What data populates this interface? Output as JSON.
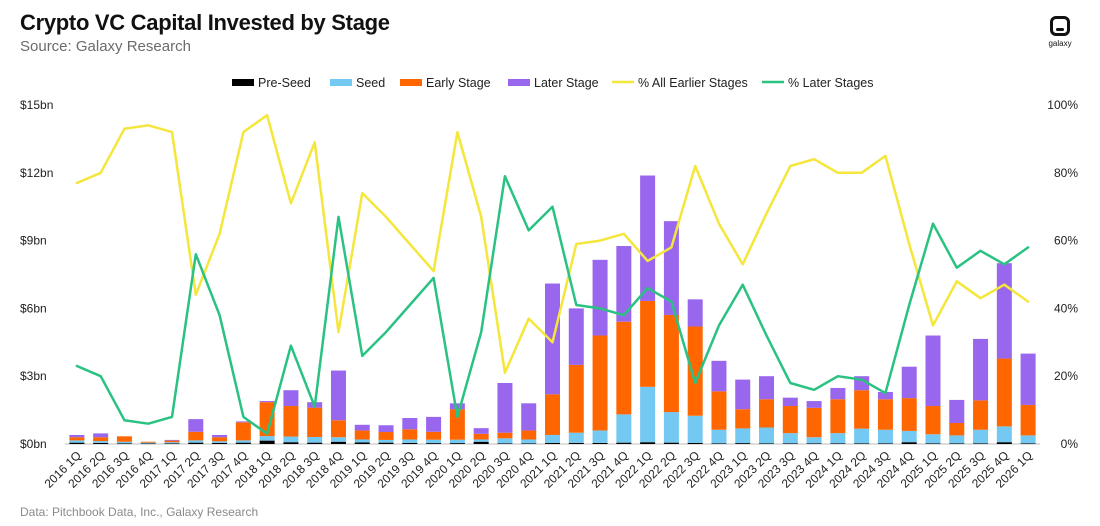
{
  "header": {
    "title": "Crypto VC Capital Invested by Stage",
    "subtitle": "Source: Galaxy Research",
    "source_note": "Data: Pitchbook Data, Inc., Galaxy Research",
    "logo_text": "galaxy"
  },
  "colors": {
    "pre_seed": "#000000",
    "seed": "#74c9f2",
    "early": "#ff6600",
    "later": "#9966ee",
    "pct_earlier": "#f5e63b",
    "pct_later": "#2ac282"
  },
  "chart_data": {
    "type": "bar",
    "stacked": true,
    "title": "Crypto VC Capital Invested by Stage",
    "categories": [
      "2016 1Q",
      "2016 2Q",
      "2016 3Q",
      "2016 4Q",
      "2017 1Q",
      "2017 2Q",
      "2017 3Q",
      "2017 4Q",
      "2018 1Q",
      "2018 2Q",
      "2018 3Q",
      "2018 4Q",
      "2019 1Q",
      "2019 2Q",
      "2019 3Q",
      "2019 4Q",
      "2020 1Q",
      "2020 2Q",
      "2020 3Q",
      "2020 4Q",
      "2021 1Q",
      "2021 2Q",
      "2021 3Q",
      "2021 4Q",
      "2022 1Q",
      "2022 2Q",
      "2022 3Q",
      "2022 4Q",
      "2023 1Q",
      "2023 2Q",
      "2023 3Q",
      "2023 4Q",
      "2024 1Q",
      "2024 2Q",
      "2024 3Q",
      "2024 4Q",
      "2025 1Q",
      "2025 2Q",
      "2025 3Q",
      "2025 4Q",
      "2026 1Q"
    ],
    "series": [
      {
        "name": "Pre-Seed",
        "axis": "left",
        "color": "#000000",
        "values": [
          0.06,
          0.05,
          0.03,
          0.02,
          0.03,
          0.06,
          0.05,
          0.06,
          0.15,
          0.08,
          0.06,
          0.1,
          0.07,
          0.06,
          0.05,
          0.04,
          0.04,
          0.1,
          0.03,
          0.03,
          0.05,
          0.05,
          0.05,
          0.06,
          0.08,
          0.06,
          0.05,
          0.03,
          0.04,
          0.03,
          0.03,
          0.03,
          0.03,
          0.03,
          0.03,
          0.08,
          0.03,
          0.03,
          0.03,
          0.08,
          0.03
        ]
      },
      {
        "name": "Seed",
        "axis": "left",
        "color": "#74c9f2",
        "values": [
          0.1,
          0.08,
          0.07,
          0.04,
          0.05,
          0.1,
          0.07,
          0.1,
          0.2,
          0.25,
          0.25,
          0.2,
          0.13,
          0.12,
          0.15,
          0.15,
          0.15,
          0.1,
          0.22,
          0.17,
          0.35,
          0.45,
          0.55,
          1.25,
          2.45,
          1.35,
          1.2,
          0.6,
          0.65,
          0.7,
          0.45,
          0.27,
          0.45,
          0.65,
          0.6,
          0.5,
          0.4,
          0.35,
          0.6,
          0.7,
          0.35
        ]
      },
      {
        "name": "Early Stage",
        "axis": "left",
        "color": "#ff6600",
        "values": [
          0.14,
          0.17,
          0.24,
          0.04,
          0.07,
          0.38,
          0.18,
          0.8,
          1.5,
          1.35,
          1.3,
          0.75,
          0.4,
          0.35,
          0.45,
          0.35,
          1.35,
          0.25,
          0.25,
          0.4,
          1.8,
          3.0,
          4.2,
          4.1,
          3.8,
          4.3,
          3.95,
          1.7,
          0.85,
          1.25,
          1.2,
          1.3,
          1.5,
          1.7,
          1.35,
          1.45,
          1.25,
          0.55,
          1.3,
          3.0,
          1.35
        ]
      },
      {
        "name": "Later Stage",
        "axis": "left",
        "color": "#9966ee",
        "values": [
          0.1,
          0.17,
          0.0,
          0.0,
          0.03,
          0.56,
          0.1,
          0.04,
          0.05,
          0.7,
          0.24,
          2.2,
          0.25,
          0.3,
          0.5,
          0.66,
          0.26,
          0.25,
          2.2,
          1.2,
          4.9,
          2.5,
          3.35,
          3.35,
          5.55,
          4.15,
          1.2,
          1.35,
          1.31,
          1.02,
          0.37,
          0.3,
          0.5,
          0.62,
          0.32,
          1.39,
          3.12,
          1.02,
          2.72,
          4.22,
          2.27
        ]
      },
      {
        "name": "% All Earlier Stages",
        "axis": "right",
        "type": "line",
        "color": "#f5e63b",
        "values": [
          77,
          80,
          93,
          94,
          92,
          44,
          62,
          92,
          97,
          71,
          89,
          33,
          74,
          67,
          59,
          51,
          92,
          67,
          21,
          37,
          30,
          59,
          60,
          62,
          54,
          58,
          82,
          65,
          53,
          68,
          82,
          84,
          80,
          80,
          85,
          59,
          35,
          48,
          43,
          47,
          42
        ]
      },
      {
        "name": "% Later Stages",
        "axis": "right",
        "type": "line",
        "color": "#2ac282",
        "values": [
          23,
          20,
          7,
          6,
          8,
          56,
          38,
          8,
          3,
          29,
          11,
          67,
          26,
          33,
          41,
          49,
          8,
          33,
          79,
          63,
          70,
          41,
          40,
          38,
          46,
          42,
          18,
          35,
          47,
          32,
          18,
          16,
          20,
          19,
          15,
          41,
          65,
          52,
          57,
          53,
          58
        ]
      }
    ],
    "y_left": {
      "min": 0,
      "max": 15,
      "ticks": [
        "$0bn",
        "$3bn",
        "$6bn",
        "$9bn",
        "$12bn",
        "$15bn"
      ]
    },
    "y_right": {
      "min": 0,
      "max": 100,
      "ticks": [
        "0%",
        "20%",
        "40%",
        "60%",
        "80%",
        "100%"
      ]
    },
    "legend_position": "top",
    "grid": false
  }
}
